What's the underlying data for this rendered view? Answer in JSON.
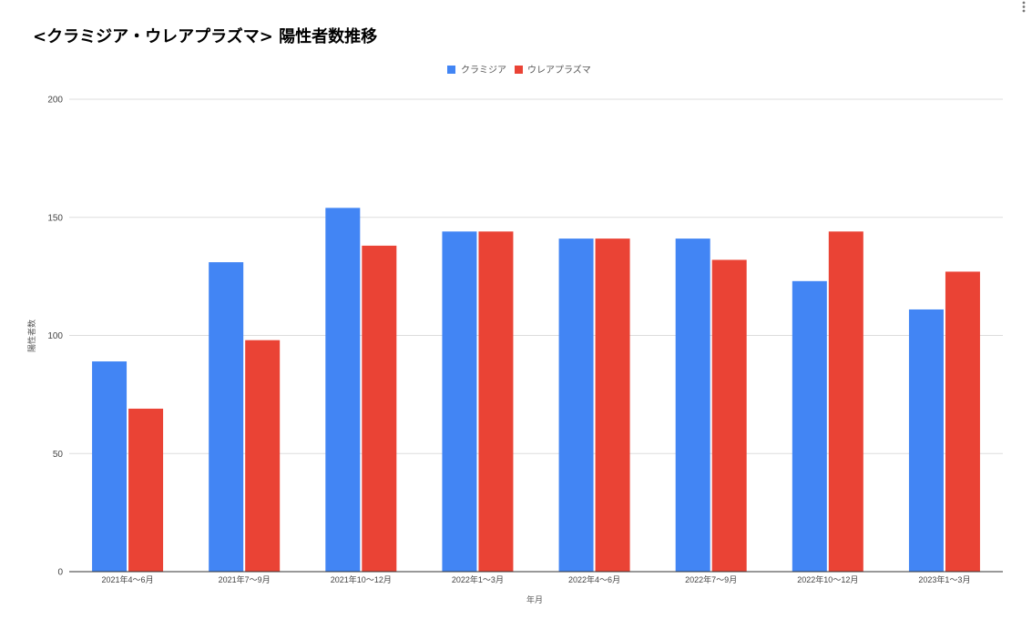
{
  "chart_data": {
    "type": "bar",
    "title": "<クラミジア・ウレアプラズマ> 陽性者数推移",
    "xlabel": "年月",
    "ylabel": "陽性者数",
    "ylim": [
      0,
      200
    ],
    "yticks": [
      "0",
      "50",
      "100",
      "150",
      "200"
    ],
    "categories": [
      "2021年4～6月",
      "2021年7～9月",
      "2021年10～12月",
      "2022年1～3月",
      "2022年4～6月",
      "2022年7～9月",
      "2022年10～12月",
      "2023年1～3月"
    ],
    "series": [
      {
        "name": "クラミジア",
        "color": "#4285f4",
        "values": [
          89,
          131,
          154,
          144,
          141,
          141,
          123,
          111
        ]
      },
      {
        "name": "ウレアプラズマ",
        "color": "#ea4335",
        "values": [
          69,
          98,
          138,
          144,
          141,
          132,
          144,
          127
        ]
      }
    ],
    "grid": true,
    "legend_position": "top-center"
  },
  "menu_icon": "more-vertical-icon"
}
